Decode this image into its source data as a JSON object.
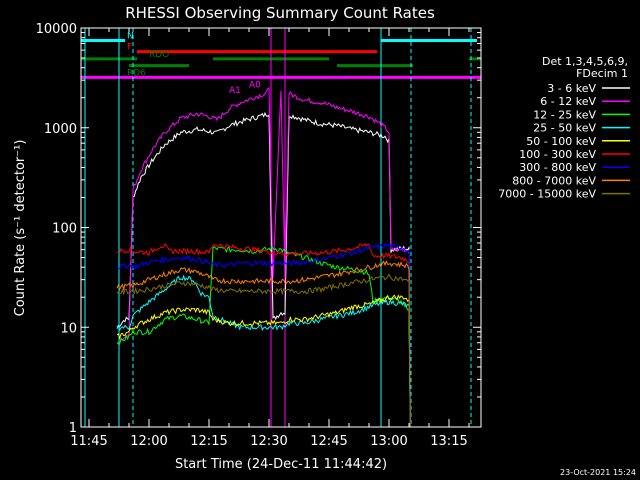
{
  "chart_data": {
    "type": "line",
    "title": "RHESSI Observing Summary Count Rates",
    "xlabel": "Start Time (24-Dec-11 11:44:42)",
    "ylabel": "Count Rate (s⁻¹ detector⁻¹)",
    "y_scale": "log",
    "ylim": [
      1,
      10000
    ],
    "xlim_minutes": [
      -2,
      98
    ],
    "x_ticks": [
      {
        "label": "11:45",
        "t": 0
      },
      {
        "label": "12:00",
        "t": 15
      },
      {
        "label": "12:15",
        "t": 30
      },
      {
        "label": "12:30",
        "t": 45
      },
      {
        "label": "12:45",
        "t": 60
      },
      {
        "label": "13:00",
        "t": 75
      },
      {
        "label": "13:15",
        "t": 90
      }
    ],
    "y_ticks": [
      {
        "label": "1",
        "v": 1
      },
      {
        "label": "10",
        "v": 10
      },
      {
        "label": "100",
        "v": 100
      },
      {
        "label": "1000",
        "v": 1000
      },
      {
        "label": "10000",
        "v": 10000
      }
    ],
    "legend_header": [
      "Det 1,3,4,5,6,9,",
      "FDecim 1"
    ],
    "legend_placement": "right",
    "series": [
      {
        "name": "3 - 6 keV",
        "color": "#ffffff",
        "points": [
          [
            7,
            10
          ],
          [
            9,
            12
          ],
          [
            10,
            12
          ],
          [
            11,
            200
          ],
          [
            13,
            320
          ],
          [
            16,
            480
          ],
          [
            19,
            680
          ],
          [
            23,
            900
          ],
          [
            27,
            960
          ],
          [
            30,
            920
          ],
          [
            32,
            880
          ],
          [
            35,
            1050
          ],
          [
            38,
            1150
          ],
          [
            41,
            1250
          ],
          [
            44,
            1350
          ],
          [
            45,
            1400
          ],
          [
            46,
            12
          ],
          [
            48,
            14
          ],
          [
            49,
            14
          ],
          [
            50,
            1350
          ],
          [
            54,
            1200
          ],
          [
            58,
            1100
          ],
          [
            62,
            1050
          ],
          [
            66,
            960
          ],
          [
            70,
            900
          ],
          [
            72,
            860
          ],
          [
            74,
            820
          ],
          [
            75,
            740
          ],
          [
            75.5,
            60
          ],
          [
            79,
            62
          ],
          [
            80,
            60
          ],
          [
            81,
            0
          ]
        ]
      },
      {
        "name": "6 - 12 keV",
        "color": "#ff00ff",
        "points": [
          [
            7,
            7
          ],
          [
            9,
            8
          ],
          [
            10,
            9
          ],
          [
            11,
            240
          ],
          [
            13,
            380
          ],
          [
            16,
            620
          ],
          [
            19,
            900
          ],
          [
            23,
            1250
          ],
          [
            27,
            1380
          ],
          [
            30,
            1300
          ],
          [
            32,
            1200
          ],
          [
            35,
            1550
          ],
          [
            38,
            1800
          ],
          [
            41,
            2000
          ],
          [
            44,
            2200
          ],
          [
            45,
            2400
          ],
          [
            46,
            30
          ],
          [
            48,
            2500
          ],
          [
            49,
            30
          ],
          [
            50,
            2200
          ],
          [
            54,
            1900
          ],
          [
            58,
            1800
          ],
          [
            62,
            1600
          ],
          [
            66,
            1450
          ],
          [
            70,
            1300
          ],
          [
            72,
            1150
          ],
          [
            74,
            1000
          ],
          [
            75,
            900
          ],
          [
            75.5,
            60
          ],
          [
            79,
            60
          ],
          [
            80,
            58
          ],
          [
            81,
            0
          ]
        ]
      },
      {
        "name": "12 - 25 keV",
        "color": "#00ff00",
        "points": [
          [
            7,
            7
          ],
          [
            10,
            8
          ],
          [
            11,
            9
          ],
          [
            15,
            9
          ],
          [
            19,
            12
          ],
          [
            23,
            13
          ],
          [
            27,
            12
          ],
          [
            30,
            11
          ],
          [
            31,
            62
          ],
          [
            35,
            60
          ],
          [
            38,
            60
          ],
          [
            41,
            58
          ],
          [
            44,
            60
          ],
          [
            46,
            62
          ],
          [
            48,
            60
          ],
          [
            50,
            55
          ],
          [
            54,
            50
          ],
          [
            58,
            44
          ],
          [
            62,
            40
          ],
          [
            66,
            38
          ],
          [
            69,
            36
          ],
          [
            70,
            34
          ],
          [
            71,
            18
          ],
          [
            75,
            20
          ],
          [
            78,
            18
          ],
          [
            80,
            14
          ],
          [
            81,
            0
          ]
        ]
      },
      {
        "name": "25 - 50 keV",
        "color": "#00ffff",
        "points": [
          [
            7,
            10
          ],
          [
            10,
            10
          ],
          [
            11,
            13
          ],
          [
            15,
            18
          ],
          [
            19,
            24
          ],
          [
            23,
            32
          ],
          [
            26,
            30
          ],
          [
            28,
            22
          ],
          [
            30,
            20
          ],
          [
            31,
            13
          ],
          [
            35,
            11
          ],
          [
            38,
            10
          ],
          [
            41,
            10
          ],
          [
            44,
            10
          ],
          [
            46,
            10
          ],
          [
            48,
            10
          ],
          [
            50,
            11
          ],
          [
            54,
            11
          ],
          [
            58,
            12
          ],
          [
            62,
            13
          ],
          [
            66,
            14
          ],
          [
            70,
            16
          ],
          [
            72,
            17
          ],
          [
            75,
            18
          ],
          [
            79,
            17
          ],
          [
            80,
            16
          ],
          [
            81,
            0
          ]
        ]
      },
      {
        "name": "50 - 100 keV",
        "color": "#ffff00",
        "points": [
          [
            7,
            8
          ],
          [
            10,
            9
          ],
          [
            11,
            10
          ],
          [
            15,
            12
          ],
          [
            19,
            14
          ],
          [
            23,
            15
          ],
          [
            27,
            15
          ],
          [
            30,
            14
          ],
          [
            31,
            12
          ],
          [
            35,
            11
          ],
          [
            38,
            11
          ],
          [
            41,
            11
          ],
          [
            44,
            11
          ],
          [
            46,
            11
          ],
          [
            48,
            11
          ],
          [
            50,
            12
          ],
          [
            54,
            12
          ],
          [
            58,
            13
          ],
          [
            62,
            14
          ],
          [
            66,
            16
          ],
          [
            70,
            17
          ],
          [
            72,
            18
          ],
          [
            75,
            20
          ],
          [
            79,
            20
          ],
          [
            80,
            18
          ],
          [
            81,
            0
          ]
        ]
      },
      {
        "name": "100 - 300 keV",
        "color": "#ff0000",
        "points": [
          [
            7,
            58
          ],
          [
            10,
            60
          ],
          [
            11,
            58
          ],
          [
            15,
            56
          ],
          [
            18,
            66
          ],
          [
            19,
            65
          ],
          [
            20,
            58
          ],
          [
            23,
            58
          ],
          [
            27,
            58
          ],
          [
            30,
            56
          ],
          [
            31,
            68
          ],
          [
            35,
            64
          ],
          [
            38,
            62
          ],
          [
            41,
            60
          ],
          [
            44,
            58
          ],
          [
            46,
            56
          ],
          [
            48,
            55
          ],
          [
            50,
            55
          ],
          [
            54,
            55
          ],
          [
            58,
            56
          ],
          [
            62,
            58
          ],
          [
            66,
            62
          ],
          [
            70,
            68
          ],
          [
            71,
            52
          ],
          [
            75,
            52
          ],
          [
            78,
            50
          ],
          [
            80,
            46
          ],
          [
            81,
            0
          ]
        ]
      },
      {
        "name": "300 - 800 keV",
        "color": "#0000ff",
        "points": [
          [
            7,
            40
          ],
          [
            10,
            42
          ],
          [
            11,
            40
          ],
          [
            15,
            45
          ],
          [
            19,
            48
          ],
          [
            23,
            50
          ],
          [
            27,
            48
          ],
          [
            30,
            44
          ],
          [
            31,
            42
          ],
          [
            35,
            42
          ],
          [
            38,
            44
          ],
          [
            41,
            44
          ],
          [
            44,
            44
          ],
          [
            46,
            44
          ],
          [
            48,
            44
          ],
          [
            50,
            44
          ],
          [
            54,
            45
          ],
          [
            58,
            48
          ],
          [
            62,
            52
          ],
          [
            66,
            56
          ],
          [
            70,
            62
          ],
          [
            72,
            64
          ],
          [
            75,
            66
          ],
          [
            79,
            62
          ],
          [
            80,
            58
          ],
          [
            81,
            0
          ]
        ]
      },
      {
        "name": "800 - 7000 keV",
        "color": "#ff8000",
        "points": [
          [
            7,
            25
          ],
          [
            10,
            26
          ],
          [
            11,
            26
          ],
          [
            15,
            30
          ],
          [
            19,
            34
          ],
          [
            23,
            38
          ],
          [
            27,
            36
          ],
          [
            30,
            32
          ],
          [
            31,
            30
          ],
          [
            35,
            29
          ],
          [
            38,
            29
          ],
          [
            41,
            29
          ],
          [
            44,
            29
          ],
          [
            46,
            29
          ],
          [
            48,
            29
          ],
          [
            50,
            29
          ],
          [
            54,
            30
          ],
          [
            58,
            32
          ],
          [
            62,
            34
          ],
          [
            66,
            37
          ],
          [
            70,
            40
          ],
          [
            72,
            42
          ],
          [
            75,
            44
          ],
          [
            79,
            42
          ],
          [
            80,
            40
          ],
          [
            81,
            0
          ]
        ]
      },
      {
        "name": "7000 - 15000 keV",
        "color": "#807000",
        "points": [
          [
            7,
            22
          ],
          [
            10,
            23
          ],
          [
            11,
            23
          ],
          [
            15,
            24
          ],
          [
            19,
            26
          ],
          [
            23,
            28
          ],
          [
            27,
            27
          ],
          [
            30,
            25
          ],
          [
            31,
            24
          ],
          [
            35,
            23
          ],
          [
            38,
            23
          ],
          [
            41,
            23
          ],
          [
            44,
            23
          ],
          [
            46,
            23
          ],
          [
            48,
            23
          ],
          [
            50,
            23
          ],
          [
            54,
            23
          ],
          [
            58,
            24
          ],
          [
            62,
            26
          ],
          [
            66,
            28
          ],
          [
            70,
            30
          ],
          [
            72,
            31
          ],
          [
            75,
            32
          ],
          [
            79,
            30
          ],
          [
            80,
            28
          ],
          [
            81,
            0
          ]
        ]
      }
    ],
    "flag_rows": [
      {
        "label": "N",
        "color": "#00ffff",
        "v": 7500,
        "segments": [
          [
            -2,
            9
          ],
          [
            73,
            97
          ]
        ]
      },
      {
        "label": "F",
        "color": "#ff0000",
        "v": 5800,
        "segments": [
          [
            12,
            72
          ]
        ]
      },
      {
        "label": "RDO",
        "color": "#008000",
        "v": 4900,
        "segments": [
          [
            -2,
            12
          ],
          [
            31,
            60
          ],
          [
            95,
            98
          ]
        ]
      },
      {
        "label": "RD6",
        "color": "#008000",
        "v": 4200,
        "segments": [
          [
            10,
            25
          ],
          [
            62,
            81
          ]
        ]
      },
      {
        "label": "A1",
        "color": "#ff00ff",
        "v": 2800,
        "segments": []
      },
      {
        "label": "A0",
        "color": "#ff00ff",
        "v": 3200,
        "segments": [
          [
            -2,
            98
          ]
        ]
      }
    ],
    "vertical_markers": [
      {
        "t": -1,
        "style": "solid",
        "color": "#00ffff"
      },
      {
        "t": 7.5,
        "style": "solid",
        "color": "#00ffff"
      },
      {
        "t": 11,
        "style": "dashed",
        "color": "#00ffff"
      },
      {
        "t": 45.5,
        "style": "solid",
        "color": "#ff00ff"
      },
      {
        "t": 49,
        "style": "solid",
        "color": "#ff00ff"
      },
      {
        "t": 73,
        "style": "solid",
        "color": "#00ffff"
      },
      {
        "t": 80.5,
        "style": "dashed",
        "color": "#00ffff"
      },
      {
        "t": 95.5,
        "style": "dashed",
        "color": "#00ffff"
      }
    ],
    "footer": "23-Oct-2021 15:24"
  }
}
